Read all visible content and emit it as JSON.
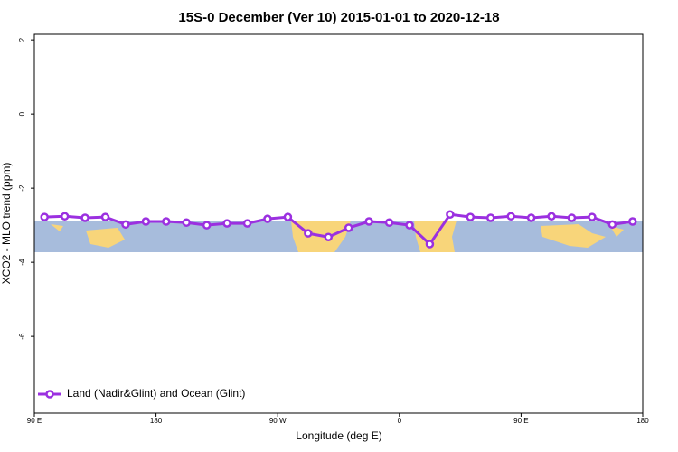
{
  "chart_data": {
    "type": "line",
    "title": "15S-0 December (Ver 10)   2015-01-01 to 2020-12-18",
    "x_label": "Longitude (deg E)",
    "y_label": "XCO2 - MLO trend (ppm)",
    "x": [
      97.5,
      112.5,
      127.5,
      142.5,
      157.5,
      172.5,
      187.5,
      202.5,
      217.5,
      232.5,
      247.5,
      262.5,
      277.5,
      292.5,
      307.5,
      322.5,
      337.5,
      352.5,
      367.5,
      382.5,
      397.5,
      412.5,
      427.5,
      442.5,
      457.5,
      472.5,
      487.5,
      502.5,
      517.5,
      532.5
    ],
    "series": [
      {
        "name": "Land (Nadir&Glint) and Ocean (Glint)",
        "color": "#9b30e0",
        "values": [
          -2.78,
          -2.76,
          -2.8,
          -2.78,
          -2.98,
          -2.9,
          -2.9,
          -2.93,
          -3.0,
          -2.95,
          -2.95,
          -2.83,
          -2.78,
          -3.22,
          -3.32,
          -3.07,
          -2.9,
          -2.93,
          -3.0,
          -3.51,
          -2.71,
          -2.78,
          -2.8,
          -2.76,
          -2.8,
          -2.76,
          -2.8,
          -2.78,
          -2.98,
          -2.9
        ]
      }
    ],
    "xlim": [
      90,
      540
    ],
    "xticks": [
      {
        "value": 90,
        "label": "90 E"
      },
      180,
      {
        "value": 270,
        "label": "90 W"
      },
      {
        "value": 360,
        "label": "0"
      },
      {
        "value": 450,
        "label": "90 E"
      },
      {
        "value": 540,
        "label": "180"
      }
    ],
    "ylim": [
      -8.07,
      2.15
    ],
    "yticks": [
      2,
      0,
      -2,
      -4,
      -6
    ],
    "legend": "bottom-left"
  }
}
